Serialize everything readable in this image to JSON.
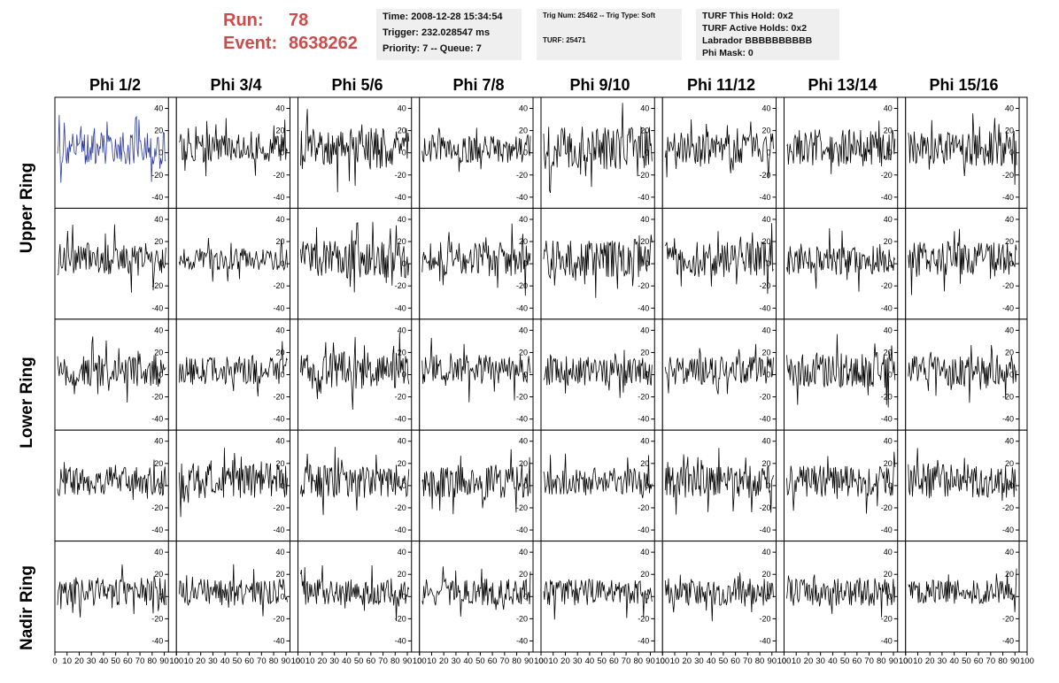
{
  "run_header": {
    "run_label": "Run:",
    "run_value": "78",
    "event_label": "Event:",
    "event_value": "8638262",
    "color": "#cc4b4b"
  },
  "time_box": {
    "lines": [
      "Time: 2008-12-28 15:34:54",
      "Trigger: 232.028547 ms",
      "Priority: 7 -- Queue: 7"
    ]
  },
  "trig_box": {
    "lines": [
      "Trig Num: 25462 -- Trig Type: Soft",
      "TURF: 25471"
    ]
  },
  "turf_box": {
    "lines": [
      "TURF This Hold: 0x2",
      "TURF Active Holds: 0x2",
      "Labrador BBBBBBBBBB",
      "Phi Mask: 0"
    ]
  },
  "column_headers": [
    "Phi 1/2",
    "Phi 3/4",
    "Phi 5/6",
    "Phi 7/8",
    "Phi 9/10",
    "Phi 11/12",
    "Phi 13/14",
    "Phi 15/16"
  ],
  "row_labels": [
    "Upper Ring",
    "Lower Ring",
    "Nadir Ring"
  ],
  "chart_data": {
    "type": "line",
    "description_rows": 5,
    "description_cols": 8,
    "ylim": [
      -50,
      50
    ],
    "y_ticks": [
      -40,
      -20,
      0,
      20,
      40
    ],
    "y_tick_labels": [
      "-40",
      "-20",
      "0",
      "20",
      "40"
    ],
    "x_ticks": [
      0,
      10,
      20,
      30,
      40,
      50,
      60,
      70,
      80,
      90,
      100
    ],
    "x_tick_labels": [
      "0",
      "10",
      "20",
      "30",
      "40",
      "50",
      "60",
      "70",
      "80",
      "90",
      "100"
    ],
    "xlim": [
      0,
      100
    ],
    "samples_per_trace": 130,
    "x_step": 0.76,
    "highlight_color": "#2d3a9a",
    "trace_color": "#000000",
    "highlighted_panel": [
      0,
      0
    ],
    "panel_amplitudes": [
      [
        15,
        13,
        19,
        13,
        20,
        14,
        17,
        16
      ],
      [
        15,
        10,
        17,
        16,
        17,
        16,
        14,
        16
      ],
      [
        15,
        13,
        17,
        14,
        14,
        13,
        16,
        14
      ],
      [
        13,
        16,
        15,
        15,
        12,
        15,
        14,
        16
      ],
      [
        13,
        12,
        13,
        12,
        12,
        13,
        13,
        11
      ]
    ]
  }
}
